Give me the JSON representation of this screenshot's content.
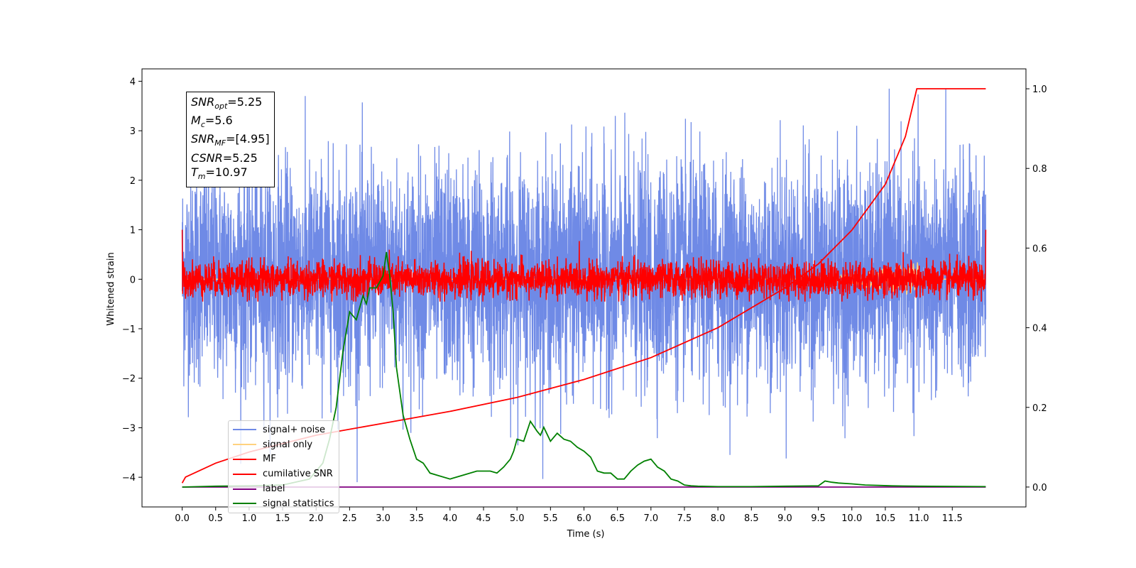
{
  "chart_data": {
    "type": "line",
    "xlabel": "Time (s)",
    "ylabel": "Whitened strain",
    "xlim": [
      -0.6,
      12.6
    ],
    "ylim": [
      -4.6,
      4.25
    ],
    "ylim_right": [
      -0.05,
      1.05
    ],
    "x_ticks": [
      "0.0",
      "0.5",
      "1.0",
      "1.5",
      "2.0",
      "2.5",
      "3.0",
      "3.5",
      "4.0",
      "4.5",
      "5.0",
      "5.5",
      "6.0",
      "6.5",
      "7.0",
      "7.5",
      "8.0",
      "8.5",
      "9.0",
      "9.5",
      "10.0",
      "10.5",
      "11.0",
      "11.5"
    ],
    "y_ticks": [
      "4",
      "3",
      "2",
      "1",
      "0",
      "−1",
      "−2",
      "−3",
      "−4"
    ],
    "y_ticks_right": [
      "1.0",
      "0.8",
      "0.6",
      "0.4",
      "0.2",
      "0.0"
    ],
    "annotation": {
      "snr_opt": "=5.25",
      "mc": "=5.6",
      "snr_mf": "=[4.95]",
      "csnr": "=5.25",
      "tm": "=10.97"
    },
    "series": [
      {
        "name": "signal+ noise",
        "color": "#6f8ae6",
        "axis": "left",
        "description_kind": "noise",
        "x_range": [
          0,
          12.0
        ],
        "approx_mean": 0.1,
        "approx_std": 1.1,
        "min": -4.1,
        "max": 3.85
      },
      {
        "name": "signal only",
        "color": "#ffd27f",
        "axis": "left",
        "x_range": [
          0,
          12.0
        ]
      },
      {
        "name": "MF",
        "color": "#ff0000",
        "axis": "left",
        "description_kind": "noise",
        "x_range": [
          0,
          12.0
        ],
        "approx_std": 0.18,
        "min": -0.45,
        "max": 1.0
      },
      {
        "name": "cumilative SNR",
        "color": "#ff0000",
        "axis": "right",
        "x": [
          0.0,
          0.05,
          0.5,
          1.0,
          2.0,
          3.0,
          4.0,
          5.0,
          6.0,
          7.0,
          8.0,
          9.0,
          9.5,
          10.0,
          10.5,
          10.8,
          10.97,
          11.0,
          12.0
        ],
        "y": [
          0.01,
          0.025,
          0.06,
          0.088,
          0.13,
          0.16,
          0.19,
          0.225,
          0.27,
          0.325,
          0.4,
          0.5,
          0.56,
          0.645,
          0.76,
          0.88,
          1.0,
          1.0,
          1.0
        ]
      },
      {
        "name": "label",
        "color": "#800080",
        "axis": "right",
        "x": [
          0.0,
          12.0
        ],
        "y": [
          0.0,
          0.0
        ]
      },
      {
        "name": "signal statistics",
        "color": "#008000",
        "axis": "right",
        "x": [
          0.0,
          0.5,
          1.0,
          1.5,
          1.9,
          2.1,
          2.2,
          2.3,
          2.4,
          2.5,
          2.6,
          2.7,
          2.75,
          2.8,
          2.9,
          3.0,
          3.05,
          3.1,
          3.15,
          3.2,
          3.3,
          3.4,
          3.5,
          3.6,
          3.7,
          3.8,
          4.0,
          4.1,
          4.2,
          4.4,
          4.6,
          4.7,
          4.8,
          4.9,
          4.95,
          5.0,
          5.1,
          5.2,
          5.3,
          5.35,
          5.4,
          5.5,
          5.6,
          5.7,
          5.8,
          5.9,
          6.0,
          6.1,
          6.2,
          6.3,
          6.4,
          6.5,
          6.6,
          6.7,
          6.8,
          6.9,
          7.0,
          7.05,
          7.1,
          7.2,
          7.3,
          7.4,
          7.5,
          7.6,
          7.7,
          8.0,
          8.5,
          9.0,
          9.5,
          9.6,
          9.7,
          9.8,
          10.0,
          10.2,
          10.4,
          10.6,
          11.0,
          12.0
        ],
        "y": [
          0.0,
          0.002,
          0.003,
          0.005,
          0.02,
          0.06,
          0.12,
          0.2,
          0.34,
          0.44,
          0.42,
          0.48,
          0.46,
          0.5,
          0.5,
          0.53,
          0.59,
          0.53,
          0.44,
          0.3,
          0.18,
          0.12,
          0.07,
          0.06,
          0.035,
          0.03,
          0.02,
          0.025,
          0.03,
          0.04,
          0.04,
          0.035,
          0.05,
          0.07,
          0.09,
          0.12,
          0.115,
          0.165,
          0.14,
          0.13,
          0.15,
          0.115,
          0.135,
          0.12,
          0.115,
          0.1,
          0.09,
          0.075,
          0.04,
          0.035,
          0.035,
          0.02,
          0.02,
          0.04,
          0.055,
          0.065,
          0.07,
          0.06,
          0.05,
          0.04,
          0.02,
          0.015,
          0.005,
          0.003,
          0.002,
          0.001,
          0.001,
          0.002,
          0.003,
          0.015,
          0.012,
          0.01,
          0.008,
          0.005,
          0.004,
          0.003,
          0.002,
          0.001
        ]
      }
    ]
  }
}
